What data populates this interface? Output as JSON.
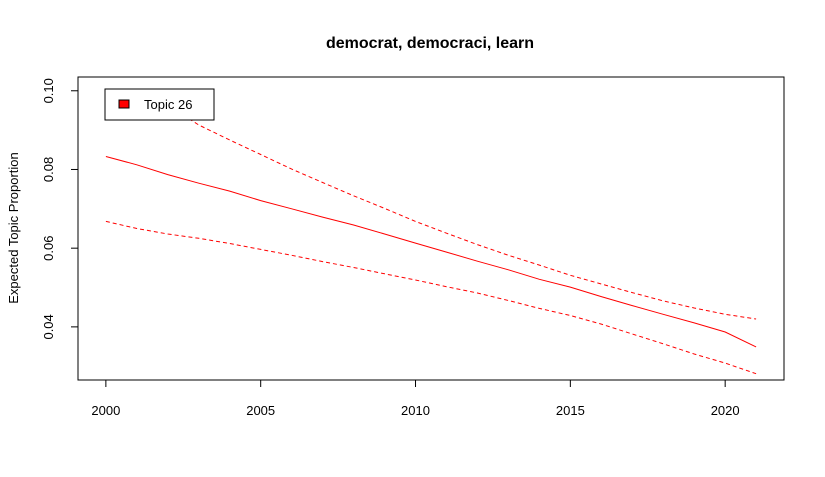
{
  "chart_data": {
    "type": "line",
    "title": "democrat, democraci, learn",
    "xlabel": "",
    "ylabel": "Expected Topic Proportion",
    "xlim": [
      1999.1,
      2021.9
    ],
    "ylim": [
      0.0265,
      0.1035
    ],
    "x_ticks": [
      "2000",
      "2005",
      "2010",
      "2015",
      "2020"
    ],
    "y_ticks": [
      "0.04",
      "0.06",
      "0.08",
      "0.10"
    ],
    "legend": {
      "position": "top-left",
      "entries": [
        {
          "label": "Topic 26",
          "color": "#ff0000"
        }
      ]
    },
    "grid": false,
    "series": [
      {
        "name": "Topic 26",
        "role": "estimate",
        "color": "#ff0000",
        "x": [
          2000,
          2001,
          2002,
          2003,
          2004,
          2005,
          2006,
          2007,
          2008,
          2009,
          2010,
          2011,
          2012,
          2013,
          2014,
          2015,
          2016,
          2017,
          2018,
          2019,
          2020,
          2021
        ],
        "y": [
          0.0833,
          0.0812,
          0.0787,
          0.0765,
          0.0745,
          0.0721,
          0.07,
          0.0679,
          0.0659,
          0.0636,
          0.0613,
          0.059,
          0.0567,
          0.0545,
          0.0521,
          0.0501,
          0.0477,
          0.0454,
          0.0432,
          0.041,
          0.0387,
          0.0349
        ]
      },
      {
        "role": "upper-bound",
        "color": "#ff0000",
        "x": [
          2002.3,
          2003,
          2004,
          2005,
          2006,
          2007,
          2008,
          2009,
          2010,
          2011,
          2012,
          2013,
          2014,
          2015,
          2016,
          2017,
          2018,
          2019,
          2020,
          2021
        ],
        "y": [
          0.0948,
          0.0913,
          0.0875,
          0.0838,
          0.0801,
          0.0767,
          0.0733,
          0.0701,
          0.0668,
          0.0638,
          0.0609,
          0.0582,
          0.0557,
          0.0531,
          0.0509,
          0.0487,
          0.0466,
          0.0448,
          0.0432,
          0.042
        ]
      },
      {
        "role": "lower-bound",
        "color": "#ff0000",
        "x": [
          2000,
          2001,
          2002,
          2003,
          2004,
          2005,
          2006,
          2007,
          2008,
          2009,
          2010,
          2011,
          2012,
          2013,
          2014,
          2015,
          2016,
          2017,
          2018,
          2019,
          2020,
          2021
        ],
        "y": [
          0.0668,
          0.065,
          0.0636,
          0.0625,
          0.0612,
          0.0597,
          0.0582,
          0.0566,
          0.0551,
          0.0535,
          0.0519,
          0.0502,
          0.0486,
          0.0467,
          0.0447,
          0.0429,
          0.0407,
          0.0382,
          0.0357,
          0.0331,
          0.0308,
          0.0281
        ]
      }
    ]
  }
}
